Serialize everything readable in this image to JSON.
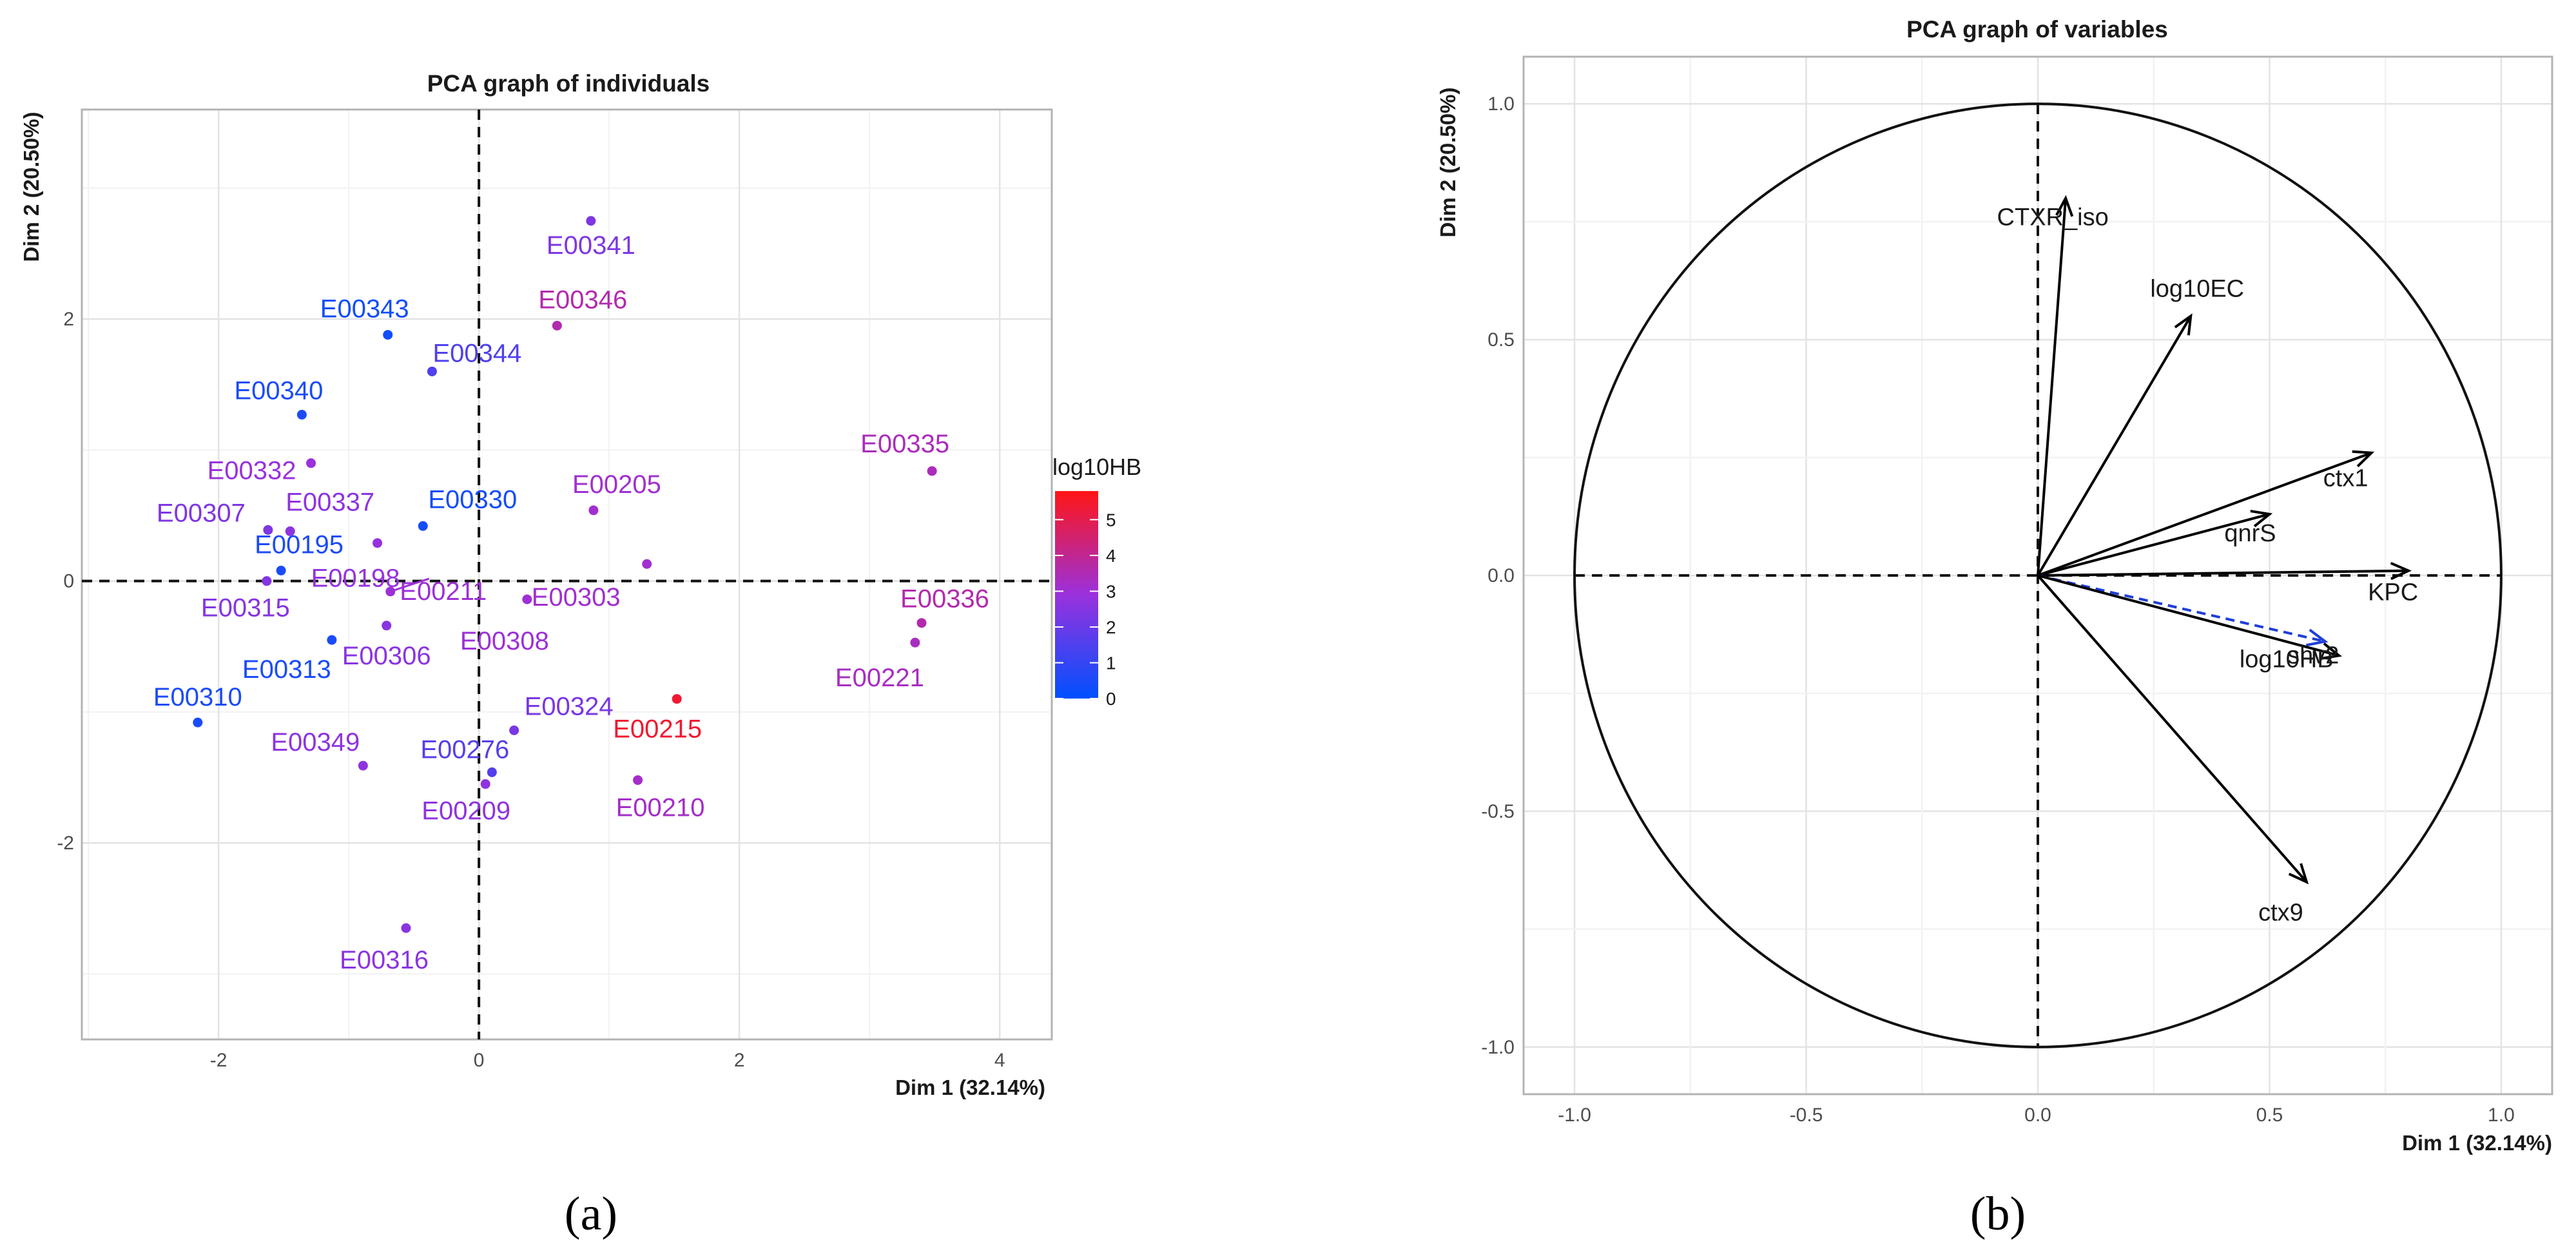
{
  "chart_data": [
    {
      "type": "scatter",
      "title": "PCA graph of individuals",
      "xlabel": "Dim 1 (32.14%)",
      "ylabel": "Dim 2 (20.50%)",
      "xlim": [
        -3.05,
        4.4
      ],
      "ylim": [
        -3.5,
        3.6
      ],
      "xticks": [
        -2,
        0,
        2,
        4
      ],
      "yticks": [
        -2,
        0,
        2
      ],
      "grid": true,
      "legend": {
        "title": "log10HB",
        "ticks": [
          0,
          1,
          2,
          3,
          4,
          5
        ],
        "range": [
          0,
          5.8
        ],
        "low_color": "#0050ff",
        "mid_color": "#9a31dd",
        "high_color": "#ff1515",
        "placement": "right"
      },
      "points": [
        {
          "label": "E00341",
          "x": 0.86,
          "y": 2.75,
          "hb": 2.4
        },
        {
          "label": "E00343",
          "x": -0.7,
          "y": 1.88,
          "hb": 0.3
        },
        {
          "label": "E00346",
          "x": 0.6,
          "y": 1.95,
          "hb": 3.6
        },
        {
          "label": "E00344",
          "x": -0.36,
          "y": 1.6,
          "hb": 1.5
        },
        {
          "label": "E00340",
          "x": -1.36,
          "y": 1.27,
          "hb": 0.5
        },
        {
          "label": "E00332",
          "x": -1.29,
          "y": 0.9,
          "hb": 2.9
        },
        {
          "label": "E00335",
          "x": 3.48,
          "y": 0.84,
          "hb": 3.4
        },
        {
          "label": "E00205",
          "x": 0.88,
          "y": 0.54,
          "hb": 3.1
        },
        {
          "label": "E00330",
          "x": -0.43,
          "y": 0.42,
          "hb": 0.4
        },
        {
          "label": "E00307",
          "x": -1.62,
          "y": 0.39,
          "hb": 2.4
        },
        {
          "label": "E00337",
          "x": -1.45,
          "y": 0.38,
          "hb": 2.7
        },
        {
          "label": "E00195",
          "x": -1.52,
          "y": 0.08,
          "hb": 0.5
        },
        {
          "label": "E00198",
          "x": -0.78,
          "y": 0.29,
          "hb": 2.8
        },
        {
          "label": "E00211",
          "x": -0.68,
          "y": -0.08,
          "hb": 3.0
        },
        {
          "label": "E00303",
          "x": 1.29,
          "y": 0.13,
          "hb": 3.1
        },
        {
          "label": "E00308",
          "x": 0.37,
          "y": -0.14,
          "hb": 3.0
        },
        {
          "label": "E00315",
          "x": -1.63,
          "y": 0.0,
          "hb": 2.5
        },
        {
          "label": "E00306",
          "x": -0.71,
          "y": -0.34,
          "hb": 2.6
        },
        {
          "label": "E00313",
          "x": -1.13,
          "y": -0.45,
          "hb": 0.5
        },
        {
          "label": "E00336",
          "x": 3.4,
          "y": -0.32,
          "hb": 3.6
        },
        {
          "label": "E00221",
          "x": 3.35,
          "y": -0.47,
          "hb": 3.3
        },
        {
          "label": "E00310",
          "x": -2.16,
          "y": -1.08,
          "hb": 0.5
        },
        {
          "label": "E00215",
          "x": 1.52,
          "y": -0.9,
          "hb": 5.4
        },
        {
          "label": "E00324",
          "x": 0.27,
          "y": -1.14,
          "hb": 2.3
        },
        {
          "label": "E00349",
          "x": -0.89,
          "y": -1.41,
          "hb": 2.7
        },
        {
          "label": "E00276",
          "x": 0.1,
          "y": -1.46,
          "hb": 1.6
        },
        {
          "label": "E00210",
          "x": 1.22,
          "y": -1.52,
          "hb": 3.2
        },
        {
          "label": "E00209",
          "x": 0.05,
          "y": -1.55,
          "hb": 2.7
        },
        {
          "label": "E00316",
          "x": -0.56,
          "y": -2.65,
          "hb": 2.6
        }
      ]
    },
    {
      "type": "vector",
      "title": "PCA graph of variables",
      "xlabel": "Dim 1 (32.14%)",
      "ylabel": "Dim 2 (20.50%)",
      "xlim": [
        -1.11,
        1.11
      ],
      "ylim": [
        -1.1,
        1.1
      ],
      "xticks": [
        -1.0,
        -0.5,
        0.0,
        0.5,
        1.0
      ],
      "yticks": [
        -1.0,
        -0.5,
        0.0,
        0.5,
        1.0
      ],
      "grid": true,
      "unit_circle": true,
      "variables": [
        {
          "label": "CTXR_iso",
          "x": 0.06,
          "y": 0.8,
          "style": "solid",
          "color": "#000000"
        },
        {
          "label": "log10EC",
          "x": 0.33,
          "y": 0.55,
          "style": "solid",
          "color": "#000000"
        },
        {
          "label": "ctx1",
          "x": 0.72,
          "y": 0.26,
          "style": "solid",
          "color": "#000000"
        },
        {
          "label": "qnrS",
          "x": 0.5,
          "y": 0.13,
          "style": "solid",
          "color": "#000000"
        },
        {
          "label": "KPC",
          "x": 0.8,
          "y": 0.01,
          "style": "solid",
          "color": "#000000"
        },
        {
          "label": "log10HB",
          "x": 0.62,
          "y": -0.14,
          "style": "dashed",
          "color": "#1f3fd8"
        },
        {
          "label": "shv2",
          "x": 0.65,
          "y": -0.17,
          "style": "solid",
          "color": "#000000"
        },
        {
          "label": "ctx9",
          "x": 0.58,
          "y": -0.65,
          "style": "solid",
          "color": "#000000"
        }
      ]
    }
  ],
  "panels": {
    "a": "(a)",
    "b": "(b)"
  }
}
